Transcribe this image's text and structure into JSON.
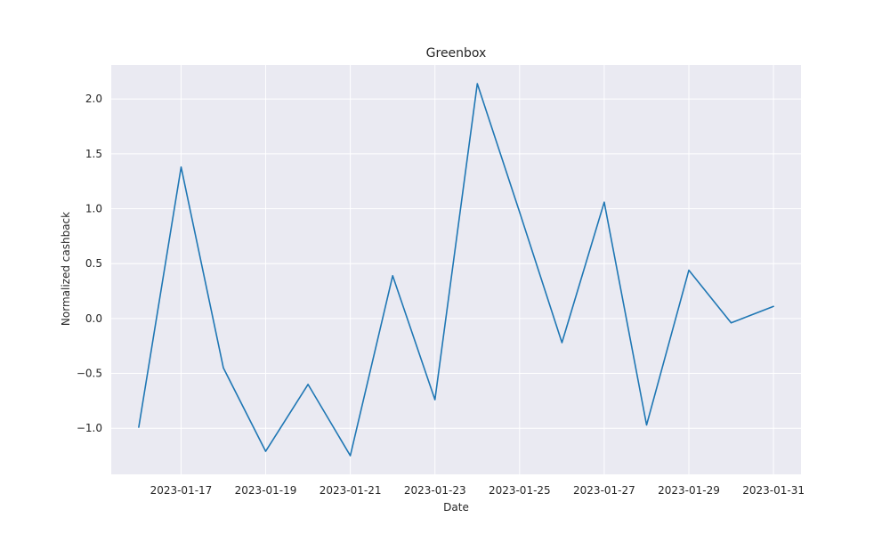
{
  "chart_data": {
    "type": "line",
    "title": "Greenbox",
    "xlabel": "Date",
    "ylabel": "Normalized cashback",
    "x": [
      "2023-01-16",
      "2023-01-17",
      "2023-01-18",
      "2023-01-19",
      "2023-01-20",
      "2023-01-21",
      "2023-01-22",
      "2023-01-23",
      "2023-01-24",
      "2023-01-25",
      "2023-01-26",
      "2023-01-27",
      "2023-01-28",
      "2023-01-29",
      "2023-01-30",
      "2023-01-31"
    ],
    "series": [
      {
        "values": [
          -0.99,
          1.38,
          -0.45,
          -1.21,
          -0.6,
          -1.25,
          0.39,
          -0.74,
          2.14,
          0.97,
          -0.22,
          1.06,
          -0.97,
          0.44,
          -0.04,
          0.11
        ],
        "color": "#1f77b4"
      }
    ],
    "xticks": [
      "2023-01-17",
      "2023-01-19",
      "2023-01-21",
      "2023-01-23",
      "2023-01-25",
      "2023-01-27",
      "2023-01-29",
      "2023-01-31"
    ],
    "yticks": [
      -1.0,
      -0.5,
      0.0,
      0.5,
      1.0,
      1.5,
      2.0
    ],
    "ytick_labels": [
      "−1.0",
      "−0.5",
      "0.0",
      "0.5",
      "1.0",
      "1.5",
      "2.0"
    ],
    "xlim": [
      "2023-01-15T08:24",
      "2023-01-31T15:36"
    ],
    "ylim": [
      -1.42,
      2.31
    ],
    "grid": true,
    "background_color": "#eaeaf2"
  }
}
